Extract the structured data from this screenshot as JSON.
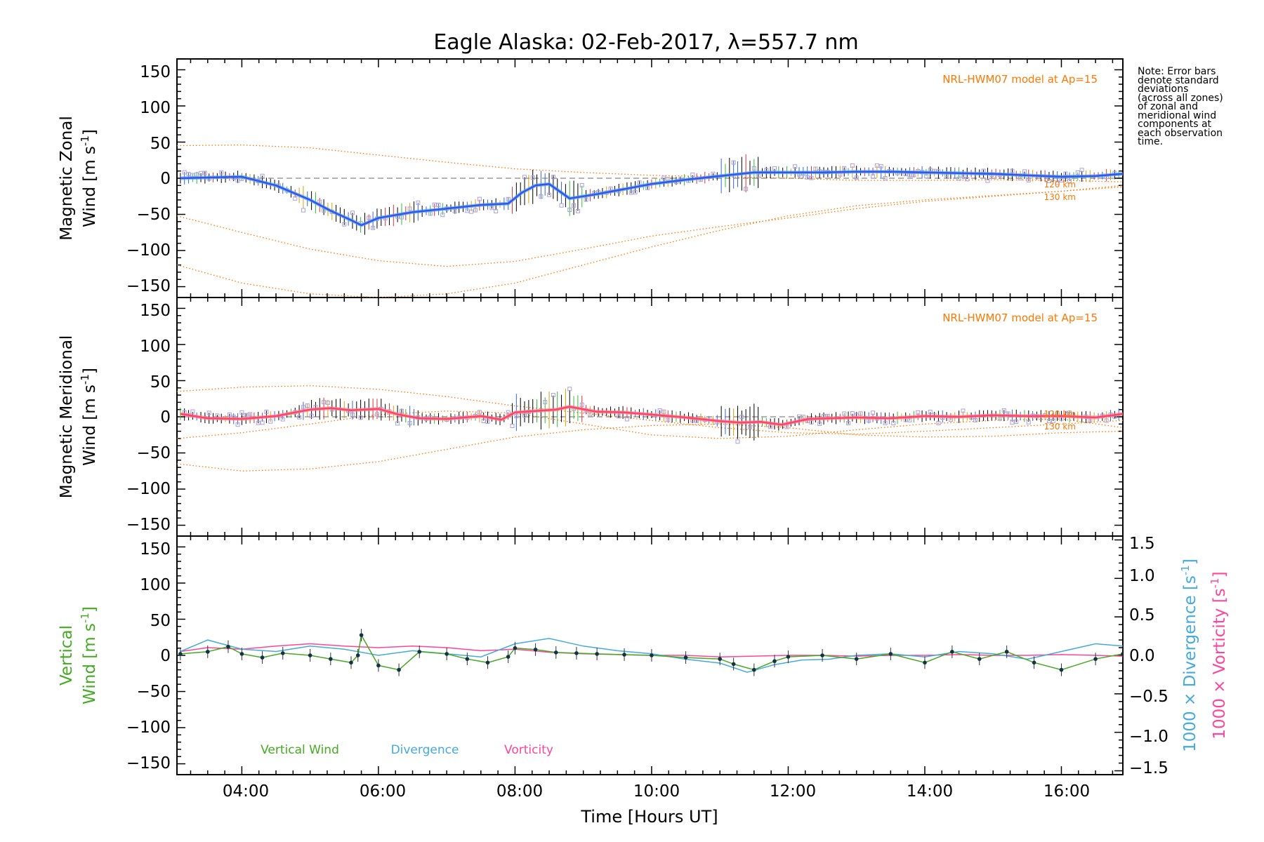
{
  "title": "Eagle Alaska: 02-Feb-2017, λ=557.7 nm",
  "note": "Note: Error bars\ndenote standard\ndeviations\n(across all zones)\nof zonal and\nmeridional wind\ncomponents at\neach observation\ntime.",
  "xlabel": "Time [Hours UT]",
  "x_ticks": [
    "04:00",
    "06:00",
    "08:00",
    "10:00",
    "12:00",
    "14:00",
    "16:00"
  ],
  "y_ticks": [
    "150",
    "100",
    "50",
    "0",
    "−50",
    "−100",
    "−150"
  ],
  "right_ticks": [
    "1.5",
    "1.0",
    "0.5",
    "0.0",
    "−0.5",
    "−1.0",
    "−1.5"
  ],
  "panels": {
    "zonal": {
      "ylabel_1": "Magnetic Zonal",
      "ylabel_2": "Wind [m s",
      "ylabel_sup": "-1",
      "ylabel_3": "]",
      "model_label": "NRL-HWM07 model at Ap=15",
      "km_1": "120 km",
      "km_2": "130 km"
    },
    "meridional": {
      "ylabel_1": "Magnetic Meridional",
      "ylabel_2": "Wind [m s",
      "ylabel_sup": "-1",
      "ylabel_3": "]",
      "model_label": "NRL-HWM07 model at Ap=15",
      "km_1": "120 km",
      "km_2": "130 km"
    },
    "vertical": {
      "ylabel_1": "Vertical",
      "ylabel_2": "Wind [m s",
      "ylabel_sup": "-1",
      "ylabel_3": "]",
      "right_label_div": "1000 × Divergence [s",
      "right_label_vort": "1000 × Vorticity [s",
      "right_sup": "-1",
      "right_close": "]",
      "legend": [
        "Vertical Wind",
        "Divergence",
        "Vorticity"
      ]
    }
  },
  "colors": {
    "zonal": "#3355ee",
    "zonal_light": "#55aaee",
    "meridional": "#ff4466",
    "model": "#ff7700",
    "samples": "#aaa0dd",
    "vertical": "#44aa22",
    "divergence": "#44aadd",
    "vorticity": "#ff4499"
  },
  "chart_data": [
    {
      "type": "line",
      "title": "Eagle Alaska: 02-Feb-2017, λ=557.7 nm",
      "xlabel": "Time [Hours UT]",
      "ylabel": "Magnetic Zonal Wind [m s-1]",
      "xlim": [
        3.05,
        16.9
      ],
      "ylim": [
        -165,
        165
      ],
      "series": [
        {
          "name": "zonal",
          "x": [
            3.1,
            3.5,
            4.0,
            4.5,
            5.0,
            5.3,
            5.6,
            5.75,
            6.0,
            6.5,
            7.0,
            7.5,
            7.9,
            8.1,
            8.3,
            8.5,
            8.8,
            9.2,
            9.6,
            10.0,
            10.5,
            11.0,
            11.5,
            12.0,
            12.5,
            13.0,
            13.5,
            14.0,
            14.5,
            15.0,
            15.5,
            16.0,
            16.5,
            16.9
          ],
          "y": [
            0,
            1,
            2,
            -10,
            -30,
            -45,
            -58,
            -65,
            -55,
            -47,
            -42,
            -37,
            -35,
            -20,
            -10,
            -8,
            -28,
            -22,
            -15,
            -8,
            -2,
            3,
            8,
            8,
            8,
            9,
            9,
            8,
            7,
            6,
            4,
            2,
            3,
            6
          ]
        },
        {
          "name": "model_120km",
          "x": [
            3.05,
            4.0,
            5.0,
            6.0,
            7.0,
            8.0,
            9.0,
            10.0,
            11.0,
            12.0,
            13.0,
            14.0,
            15.0,
            16.0,
            16.9
          ],
          "y": [
            45,
            46,
            42,
            32,
            22,
            13,
            8,
            4,
            2,
            0,
            -3,
            -3,
            -2,
            -3,
            -5
          ]
        },
        {
          "name": "model_130km",
          "x": [
            3.05,
            4.0,
            5.0,
            6.0,
            7.0,
            8.0,
            9.0,
            10.0,
            11.0,
            12.0,
            13.0,
            14.0,
            15.0,
            16.0,
            16.9
          ],
          "y": [
            -52,
            -75,
            -98,
            -114,
            -122,
            -115,
            -98,
            -80,
            -67,
            -55,
            -42,
            -32,
            -25,
            -18,
            -10
          ]
        },
        {
          "name": "model_low",
          "x": [
            3.05,
            4.0,
            5.0,
            6.0,
            7.0,
            8.0,
            9.0,
            10.0,
            11.0,
            12.0,
            13.0,
            14.0,
            15.0,
            16.0,
            16.9
          ],
          "y": [
            -120,
            -145,
            -160,
            -165,
            -160,
            -145,
            -120,
            -95,
            -72,
            -52,
            -38,
            -30,
            -24,
            -18,
            -12
          ]
        }
      ]
    },
    {
      "type": "line",
      "ylabel": "Magnetic Meridional Wind [m s-1]",
      "xlim": [
        3.05,
        16.9
      ],
      "ylim": [
        -165,
        165
      ],
      "series": [
        {
          "name": "meridional",
          "x": [
            3.1,
            3.5,
            4.0,
            4.5,
            5.0,
            5.3,
            5.6,
            6.0,
            6.3,
            6.6,
            7.0,
            7.5,
            7.8,
            8.0,
            8.3,
            8.6,
            8.8,
            9.2,
            9.6,
            10.0,
            10.5,
            11.0,
            11.3,
            11.6,
            11.9,
            12.3,
            13.0,
            13.5,
            14.0,
            14.5,
            15.0,
            15.5,
            16.0,
            16.5,
            16.9
          ],
          "y": [
            4,
            -2,
            -3,
            1,
            10,
            12,
            9,
            11,
            3,
            -2,
            -3,
            1,
            -4,
            6,
            8,
            10,
            14,
            7,
            6,
            3,
            -1,
            -6,
            -8,
            -7,
            -11,
            -3,
            -1,
            -2,
            1,
            0,
            2,
            1,
            1,
            -1,
            4
          ]
        },
        {
          "name": "model_120km",
          "x": [
            3.05,
            4.0,
            5.0,
            6.0,
            7.0,
            8.0,
            9.0,
            10.0,
            11.0,
            12.0,
            13.0,
            14.0,
            15.0,
            16.0,
            16.9
          ],
          "y": [
            35,
            41,
            43,
            38,
            28,
            15,
            5,
            -5,
            -15,
            -22,
            -24,
            -20,
            -15,
            -10,
            -5
          ]
        },
        {
          "name": "model_130km",
          "x": [
            3.05,
            4.0,
            5.0,
            6.0,
            7.0,
            8.0,
            9.0,
            10.0,
            11.0,
            12.0,
            13.0,
            14.0,
            15.0,
            16.0,
            16.9
          ],
          "y": [
            -30,
            -22,
            -10,
            3,
            8,
            5,
            -10,
            -25,
            -30,
            -27,
            -18,
            -10,
            -5,
            -3,
            -15
          ]
        },
        {
          "name": "model_low",
          "x": [
            3.05,
            4.0,
            5.0,
            6.0,
            7.0,
            8.0,
            9.0,
            10.0,
            11.0,
            12.0,
            13.0,
            14.0,
            15.0,
            16.0,
            16.9
          ],
          "y": [
            -65,
            -75,
            -72,
            -62,
            -45,
            -28,
            -18,
            -12,
            -10,
            -15,
            -25,
            -28,
            -27,
            -22,
            -20
          ]
        }
      ]
    },
    {
      "type": "line",
      "ylabel": "Vertical Wind [m s-1]",
      "y2label": "1000 × Divergence / Vorticity [s-1]",
      "xlim": [
        3.05,
        16.9
      ],
      "ylim": [
        -165,
        165
      ],
      "y2lim": [
        -1.55,
        1.55
      ],
      "series": [
        {
          "name": "Vertical Wind",
          "x": [
            3.1,
            3.5,
            3.8,
            4.0,
            4.3,
            4.6,
            5.0,
            5.3,
            5.6,
            5.7,
            5.75,
            6.0,
            6.3,
            6.6,
            7.0,
            7.3,
            7.6,
            7.9,
            8.0,
            8.3,
            8.6,
            8.9,
            9.2,
            9.6,
            10.0,
            10.5,
            11.0,
            11.2,
            11.5,
            11.8,
            12.0,
            12.5,
            13.0,
            13.5,
            14.0,
            14.4,
            14.8,
            15.2,
            15.6,
            16.0,
            16.5,
            16.9
          ],
          "y": [
            2,
            5,
            12,
            2,
            -3,
            3,
            0,
            -5,
            -10,
            0,
            28,
            -14,
            -20,
            5,
            2,
            -5,
            -10,
            -2,
            10,
            8,
            4,
            3,
            2,
            1,
            0,
            -3,
            -5,
            -12,
            -20,
            -8,
            -2,
            0,
            -5,
            2,
            -10,
            5,
            -5,
            5,
            -10,
            -20,
            -5,
            2
          ]
        },
        {
          "name": "Divergence",
          "x": [
            3.1,
            3.5,
            4.0,
            4.5,
            5.0,
            5.5,
            6.0,
            6.5,
            7.0,
            7.5,
            8.0,
            8.5,
            9.0,
            9.5,
            10.0,
            10.5,
            11.0,
            11.4,
            11.8,
            12.2,
            12.6,
            13.0,
            13.5,
            14.0,
            14.5,
            15.0,
            15.5,
            16.0,
            16.5,
            16.9
          ],
          "y": [
            0.05,
            0.2,
            0.08,
            0.05,
            0.12,
            0.08,
            0.0,
            0.06,
            0.02,
            -0.02,
            0.15,
            0.22,
            0.12,
            0.06,
            0.02,
            -0.05,
            -0.1,
            -0.22,
            -0.12,
            -0.06,
            -0.05,
            0.0,
            0.02,
            -0.02,
            0.05,
            0.02,
            -0.05,
            0.05,
            0.15,
            0.12
          ]
        },
        {
          "name": "Vorticity",
          "x": [
            3.1,
            3.5,
            4.0,
            4.5,
            5.0,
            5.5,
            6.0,
            6.5,
            7.0,
            7.5,
            8.0,
            8.5,
            9.0,
            9.5,
            10.0,
            10.5,
            11.0,
            11.5,
            12.0,
            12.5,
            13.0,
            13.5,
            14.0,
            14.5,
            15.0,
            15.5,
            16.0,
            16.5,
            16.9
          ],
          "y": [
            0.05,
            0.1,
            0.08,
            0.12,
            0.15,
            0.12,
            0.1,
            0.12,
            0.1,
            0.06,
            0.08,
            0.04,
            0.02,
            0.01,
            0.0,
            0.0,
            -0.02,
            -0.01,
            0.0,
            0.0,
            -0.01,
            0.0,
            0.0,
            0.01,
            0.0,
            0.0,
            0.01,
            0.0,
            -0.01
          ]
        }
      ]
    }
  ]
}
